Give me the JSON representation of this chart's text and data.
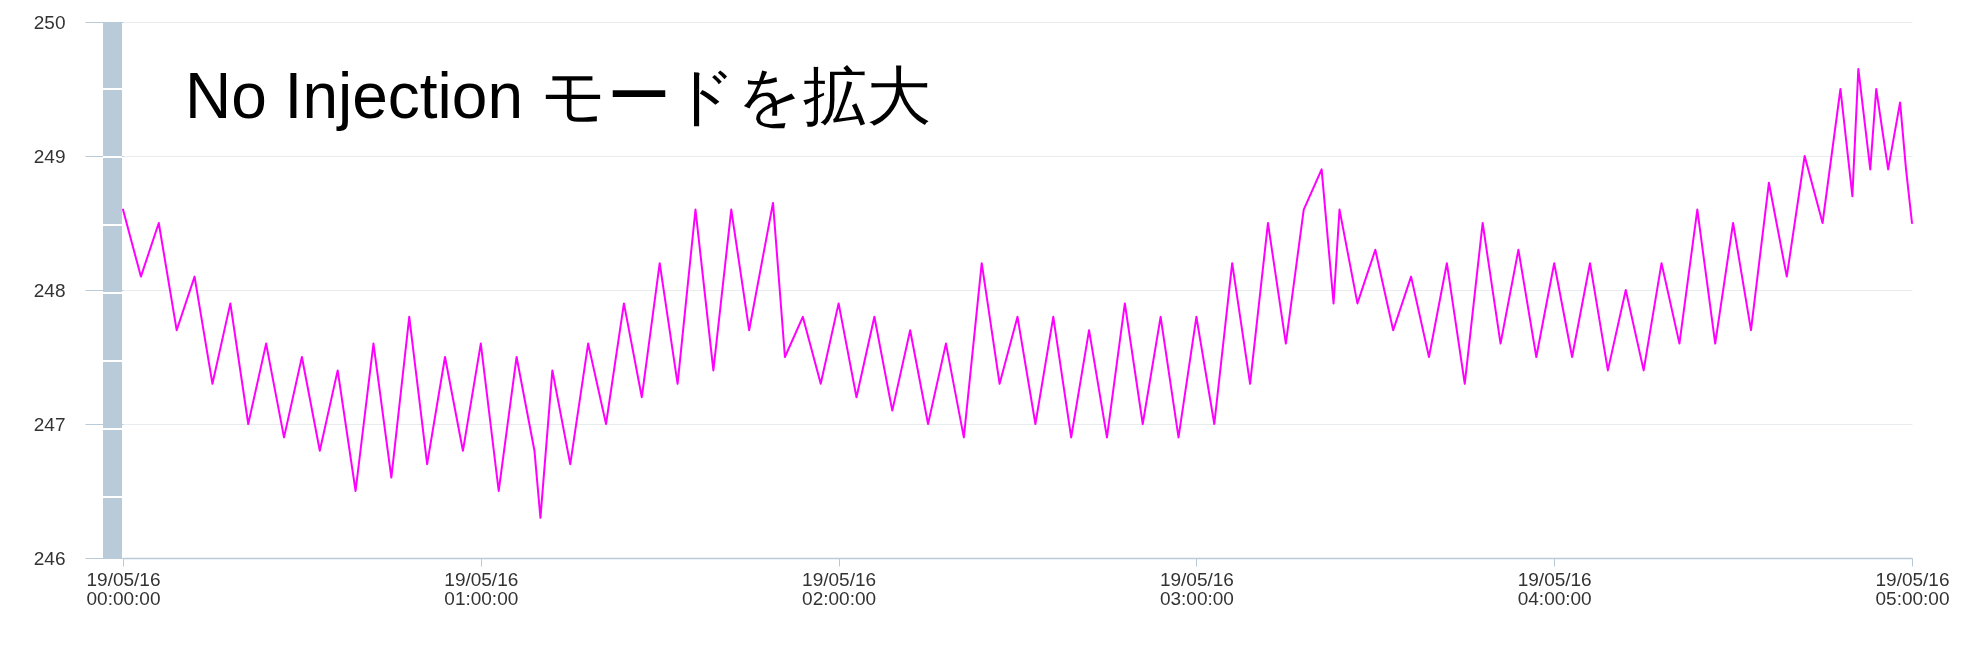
{
  "chart_data": {
    "type": "line",
    "title": "No Injection モードを拡大",
    "x": [
      "--05-16T00:00",
      "--05-16T00:03",
      "--05-16T00:06",
      "--05-16T00:09",
      "--05-16T00:12",
      "--05-16T00:15",
      "--05-16T00:18",
      "--05-16T00:21",
      "--05-16T00:24",
      "--05-16T00:27",
      "--05-16T00:30",
      "--05-16T00:33",
      "--05-16T00:36",
      "--05-16T00:39",
      "--05-16T00:42",
      "--05-16T00:45",
      "--05-16T00:48",
      "--05-16T00:51",
      "--05-16T00:54",
      "--05-16T00:57",
      "--05-16T01:00",
      "--05-16T01:03",
      "--05-16T01:06",
      "--05-16T01:09",
      "--05-16T01:10",
      "--05-16T01:12",
      "--05-16T01:15",
      "--05-16T01:18",
      "--05-16T01:21",
      "--05-16T01:24",
      "--05-16T01:27",
      "--05-16T01:30",
      "--05-16T01:33",
      "--05-16T01:36",
      "--05-16T01:39",
      "--05-16T01:42",
      "--05-16T01:45",
      "--05-16T01:49",
      "--05-16T01:51",
      "--05-16T01:54",
      "--05-16T01:57",
      "--05-16T02:00",
      "--05-16T02:03",
      "--05-16T02:06",
      "--05-16T02:09",
      "--05-16T02:12",
      "--05-16T02:15",
      "--05-16T02:18",
      "--05-16T02:21",
      "--05-16T02:24",
      "--05-16T02:27",
      "--05-16T02:30",
      "--05-16T02:33",
      "--05-16T02:36",
      "--05-16T02:39",
      "--05-16T02:42",
      "--05-16T02:45",
      "--05-16T02:48",
      "--05-16T02:51",
      "--05-16T02:54",
      "--05-16T02:57",
      "--05-16T03:00",
      "--05-16T03:03",
      "--05-16T03:06",
      "--05-16T03:09",
      "--05-16T03:12",
      "--05-16T03:15",
      "--05-16T03:18",
      "--05-16T03:21",
      "--05-16T03:23",
      "--05-16T03:24",
      "--05-16T03:27",
      "--05-16T03:30",
      "--05-16T03:33",
      "--05-16T03:36",
      "--05-16T03:39",
      "--05-16T03:42",
      "--05-16T03:45",
      "--05-16T03:48",
      "--05-16T03:51",
      "--05-16T03:54",
      "--05-16T03:57",
      "--05-16T04:00",
      "--05-16T04:03",
      "--05-16T04:06",
      "--05-16T04:09",
      "--05-16T04:12",
      "--05-16T04:15",
      "--05-16T04:18",
      "--05-16T04:21",
      "--05-16T04:24",
      "--05-16T04:27",
      "--05-16T04:30",
      "--05-16T04:33",
      "--05-16T04:36",
      "--05-16T04:39",
      "--05-16T04:42",
      "--05-16T04:45",
      "--05-16T04:48",
      "--05-16T04:50",
      "--05-16T04:51",
      "--05-16T04:53",
      "--05-16T04:54",
      "--05-16T04:56",
      "--05-16T04:58",
      "--05-16T04:59",
      "--05-16T05:00"
    ],
    "series": [
      {
        "color": "#ff00ff",
        "values": [
          248.6,
          248.1,
          248.5,
          247.7,
          248.1,
          247.3,
          247.9,
          247.0,
          247.6,
          246.9,
          247.5,
          246.8,
          247.4,
          246.5,
          247.6,
          246.6,
          247.8,
          246.7,
          247.5,
          246.8,
          247.6,
          246.5,
          247.5,
          246.8,
          246.3,
          247.4,
          246.7,
          247.6,
          247.0,
          247.9,
          247.2,
          248.2,
          247.3,
          248.6,
          247.4,
          248.6,
          247.7,
          248.65,
          247.5,
          247.8,
          247.3,
          247.9,
          247.2,
          247.8,
          247.1,
          247.7,
          247.0,
          247.6,
          246.9,
          248.2,
          247.3,
          247.8,
          247.0,
          247.8,
          246.9,
          247.7,
          246.9,
          247.9,
          247.0,
          247.8,
          246.9,
          247.8,
          247.0,
          248.2,
          247.3,
          248.5,
          247.6,
          248.6,
          248.9,
          247.9,
          248.6,
          247.9,
          248.3,
          247.7,
          248.1,
          247.5,
          248.2,
          247.3,
          248.5,
          247.6,
          248.3,
          247.5,
          248.2,
          247.5,
          248.2,
          247.4,
          248.0,
          247.4,
          248.2,
          247.6,
          248.6,
          247.6,
          248.5,
          247.7,
          248.8,
          248.1,
          249.0,
          248.5,
          249.5,
          248.7,
          249.65,
          248.9,
          249.5,
          248.9,
          249.4,
          248.9,
          248.5
        ]
      }
    ],
    "xlim": [
      "--05-16T00:00",
      "--05-16T05:00"
    ],
    "xticks": [
      {
        "value": "--05-16T00:00",
        "label": "19/05/16 00:00:00"
      },
      {
        "value": "--05-16T01:00",
        "label": "19/05/16 01:00:00"
      },
      {
        "value": "--05-16T02:00",
        "label": "19/05/16 02:00:00"
      },
      {
        "value": "--05-16T03:00",
        "label": "19/05/16 03:00:00"
      },
      {
        "value": "--05-16T04:00",
        "label": "19/05/16 04:00:00"
      },
      {
        "value": "--05-16T05:00",
        "label": "19/05/16 05:00:00"
      }
    ],
    "ylim": [
      246,
      250
    ],
    "yticks": [
      246,
      247,
      248,
      249,
      250
    ],
    "grid": "y",
    "marker": "none",
    "line_style": "solid"
  }
}
